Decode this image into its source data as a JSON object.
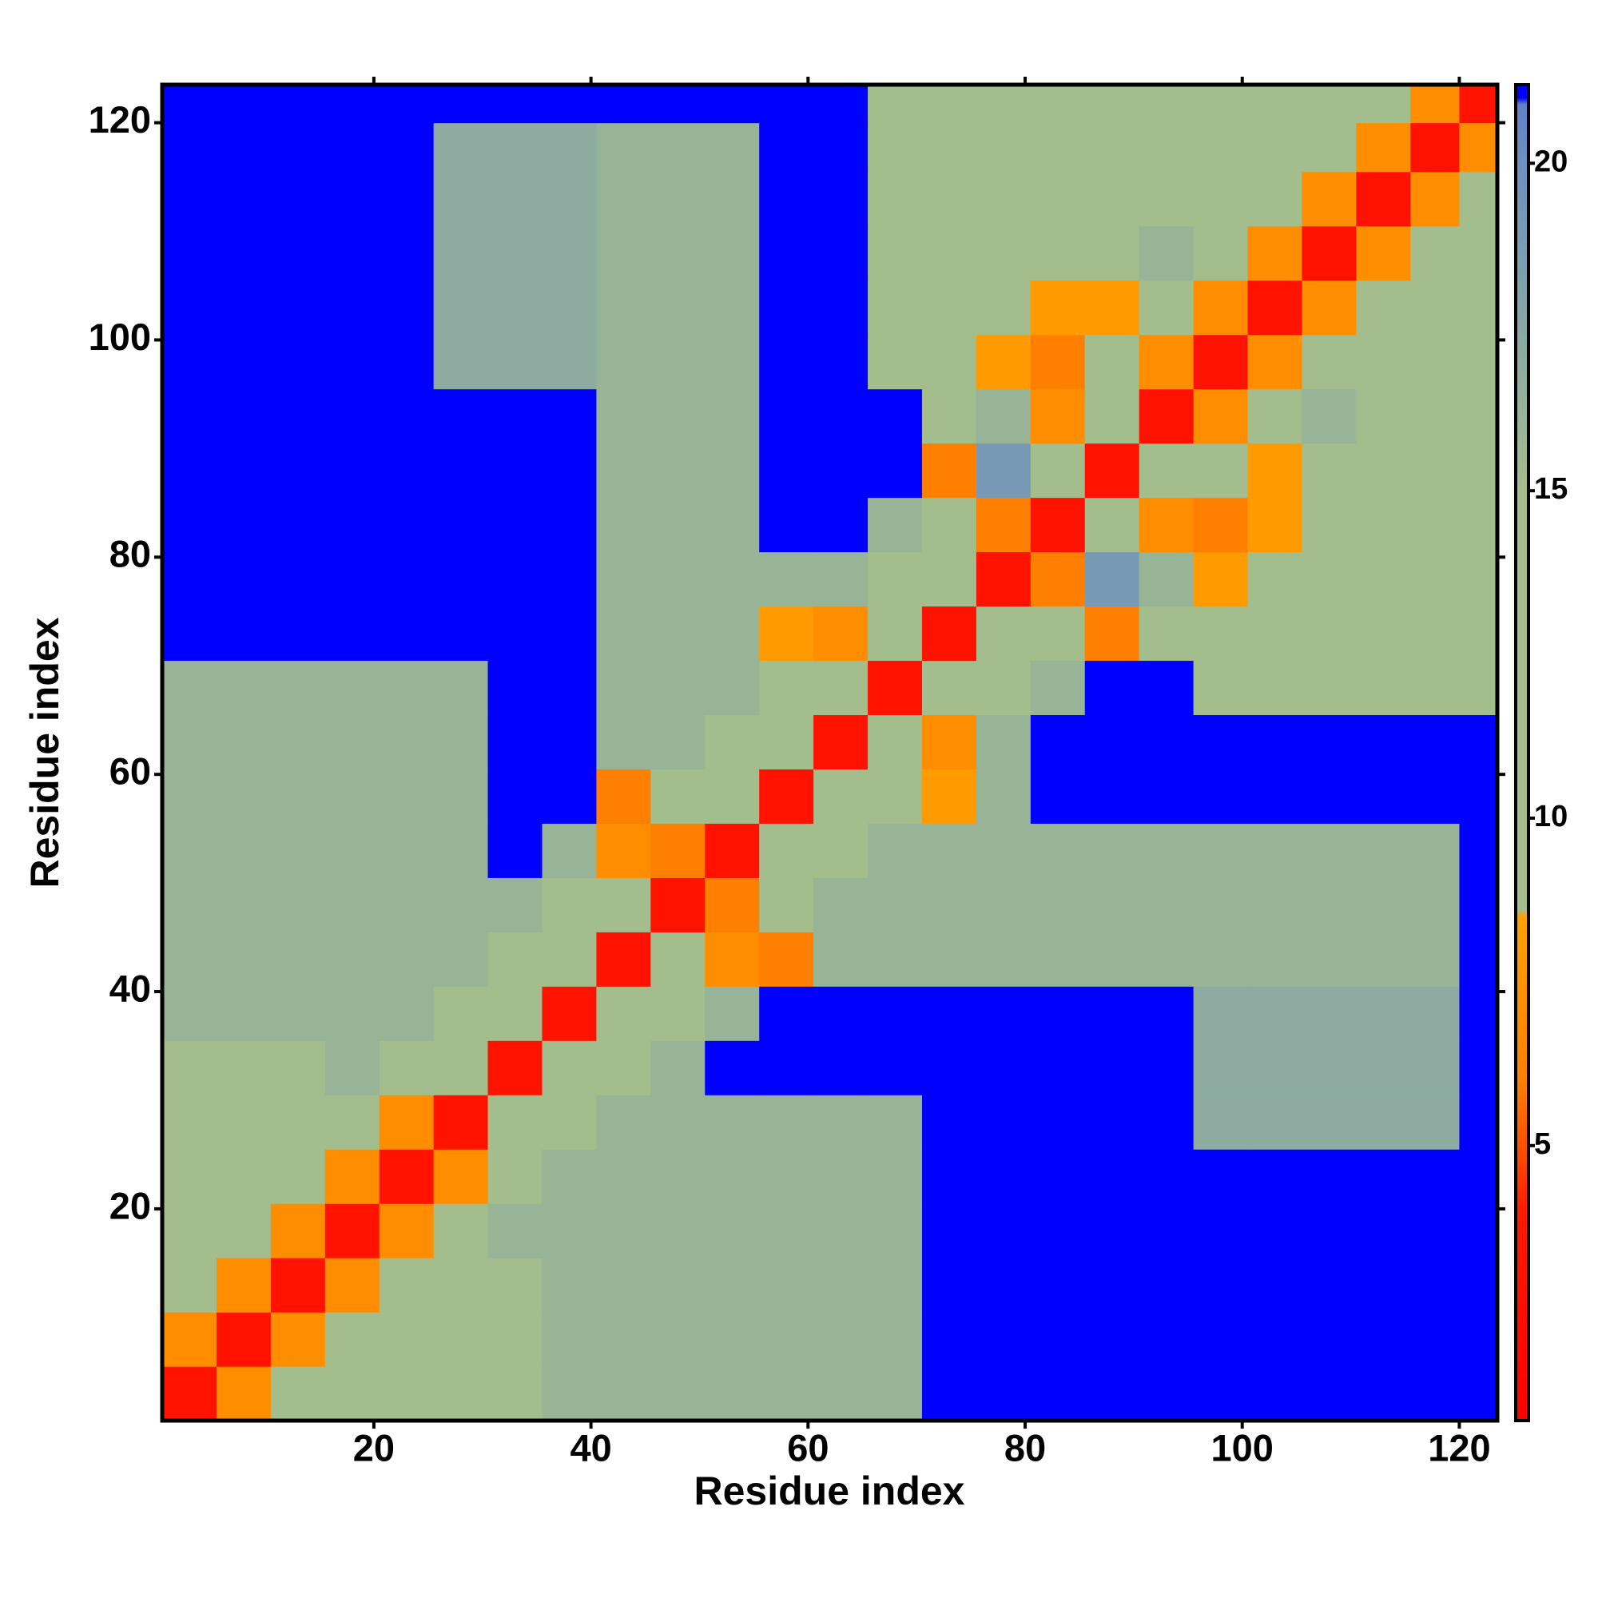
{
  "chart_data": {
    "type": "heatmap",
    "xlabel": "Residue index",
    "ylabel": "Residue index",
    "x": [
      3,
      8,
      13,
      18,
      23,
      28,
      33,
      38,
      43,
      48,
      53,
      58,
      63,
      68,
      73,
      78,
      83,
      88,
      93,
      98,
      103,
      108,
      113,
      118,
      122
    ],
    "y": [
      3,
      8,
      13,
      18,
      23,
      28,
      33,
      38,
      43,
      48,
      53,
      58,
      63,
      68,
      73,
      78,
      83,
      88,
      93,
      98,
      103,
      108,
      113,
      118,
      122
    ],
    "xlim": [
      0.5,
      123.5
    ],
    "ylim": [
      0.5,
      123.5
    ],
    "xticks": [
      20,
      40,
      60,
      80,
      100,
      120
    ],
    "yticks": [
      20,
      40,
      60,
      80,
      100,
      120
    ],
    "zlim": [
      0.8,
      21.2
    ],
    "zticks": [
      5,
      10,
      15,
      20
    ],
    "colorscale": [
      [
        0.8,
        "#ff0000"
      ],
      [
        4,
        "#ff1a00"
      ],
      [
        5,
        "#ff5000"
      ],
      [
        6,
        "#ff8000"
      ],
      [
        8.5,
        "#ffa000"
      ],
      [
        8.6,
        "#a3bd8c"
      ],
      [
        15,
        "#a3bd8c"
      ],
      [
        20,
        "#6d90c0"
      ],
      [
        20.9,
        "#5f82c8"
      ],
      [
        21,
        "#0000ff"
      ],
      [
        21.2,
        "#0000ff"
      ]
    ],
    "z": [
      [
        3,
        7,
        11,
        14,
        15,
        15,
        15,
        16,
        16,
        16,
        16,
        16,
        16,
        16,
        21,
        21,
        21,
        21,
        21,
        21,
        21,
        21,
        21,
        21,
        21
      ],
      [
        7,
        3,
        7,
        11,
        14,
        15,
        15,
        16,
        16,
        16,
        16,
        16,
        16,
        16,
        21,
        21,
        21,
        21,
        21,
        21,
        21,
        21,
        21,
        21,
        21
      ],
      [
        11,
        7,
        3,
        7,
        11,
        14,
        15,
        16,
        16,
        16,
        16,
        16,
        16,
        16,
        21,
        21,
        21,
        21,
        21,
        21,
        21,
        21,
        21,
        21,
        21
      ],
      [
        14,
        11,
        7,
        3,
        7,
        11,
        16,
        16,
        16,
        16,
        16,
        16,
        16,
        16,
        21,
        21,
        21,
        21,
        21,
        21,
        21,
        21,
        21,
        21,
        21
      ],
      [
        15,
        14,
        11,
        7,
        3,
        7,
        13,
        16,
        16,
        16,
        16,
        16,
        16,
        16,
        21,
        21,
        21,
        21,
        21,
        21,
        21,
        21,
        21,
        21,
        21
      ],
      [
        15,
        15,
        14,
        11,
        7,
        3,
        10,
        13,
        16,
        16,
        16,
        16,
        16,
        16,
        21,
        21,
        21,
        21,
        21,
        17,
        17,
        17,
        17,
        17,
        21
      ],
      [
        15,
        15,
        15,
        16,
        13,
        10,
        3,
        10,
        13,
        16,
        21,
        21,
        21,
        21,
        21,
        21,
        21,
        21,
        21,
        17,
        17,
        17,
        17,
        17,
        21
      ],
      [
        16,
        16,
        16,
        16,
        16,
        13,
        10,
        3,
        10,
        13,
        16,
        21,
        21,
        21,
        21,
        21,
        21,
        21,
        21,
        17,
        17,
        17,
        17,
        17,
        21
      ],
      [
        16,
        16,
        16,
        16,
        16,
        16,
        13,
        10,
        3,
        10,
        7,
        6,
        16,
        16,
        16,
        16,
        16,
        16,
        16,
        16,
        16,
        16,
        16,
        16,
        21
      ],
      [
        16,
        16,
        16,
        16,
        16,
        16,
        16,
        13,
        10,
        3,
        6,
        13,
        16,
        16,
        16,
        16,
        16,
        16,
        16,
        16,
        16,
        16,
        16,
        16,
        21
      ],
      [
        16,
        16,
        16,
        16,
        16,
        16,
        21,
        16,
        7,
        6,
        3,
        10,
        13,
        16,
        16,
        16,
        16,
        16,
        16,
        16,
        16,
        16,
        16,
        16,
        21
      ],
      [
        16,
        16,
        16,
        16,
        16,
        16,
        21,
        21,
        6,
        13,
        10,
        3,
        10,
        13,
        8,
        16,
        21,
        21,
        21,
        21,
        21,
        21,
        21,
        21,
        21
      ],
      [
        16,
        16,
        16,
        16,
        16,
        16,
        21,
        21,
        16,
        16,
        13,
        10,
        3,
        10,
        7,
        16,
        21,
        21,
        21,
        21,
        21,
        21,
        21,
        21,
        21
      ],
      [
        16,
        16,
        16,
        16,
        16,
        16,
        21,
        21,
        16,
        16,
        16,
        13,
        10,
        3,
        10,
        13,
        16,
        21,
        21,
        15,
        15,
        15,
        15,
        15,
        15
      ],
      [
        21,
        21,
        21,
        21,
        21,
        21,
        21,
        21,
        16,
        16,
        16,
        8,
        7,
        10,
        3,
        10,
        13,
        6,
        12,
        14,
        14,
        15,
        15,
        15,
        15
      ],
      [
        21,
        21,
        21,
        21,
        21,
        21,
        21,
        21,
        16,
        16,
        16,
        16,
        16,
        13,
        10,
        3,
        6,
        19,
        16,
        8,
        14,
        15,
        15,
        15,
        15
      ],
      [
        21,
        21,
        21,
        21,
        21,
        21,
        21,
        21,
        16,
        16,
        16,
        21,
        21,
        16,
        13,
        6,
        3,
        10,
        7,
        6,
        8,
        13,
        13,
        13,
        13
      ],
      [
        21,
        21,
        21,
        21,
        21,
        21,
        21,
        21,
        16,
        16,
        16,
        21,
        21,
        21,
        6,
        19,
        10,
        3,
        10,
        13,
        8,
        13,
        13,
        13,
        13
      ],
      [
        21,
        21,
        21,
        21,
        21,
        21,
        21,
        21,
        16,
        16,
        16,
        21,
        21,
        21,
        12,
        16,
        7,
        10,
        3,
        7,
        13,
        16,
        13,
        13,
        13
      ],
      [
        21,
        21,
        21,
        21,
        21,
        17,
        17,
        17,
        16,
        16,
        16,
        21,
        21,
        15,
        14,
        8,
        6,
        13,
        7,
        3,
        7,
        11,
        14,
        14,
        14
      ],
      [
        21,
        21,
        21,
        21,
        21,
        17,
        17,
        17,
        16,
        16,
        16,
        21,
        21,
        15,
        14,
        14,
        8,
        8,
        13,
        7,
        3,
        7,
        11,
        14,
        14
      ],
      [
        21,
        21,
        21,
        21,
        21,
        17,
        17,
        17,
        16,
        16,
        16,
        21,
        21,
        15,
        15,
        15,
        13,
        13,
        16,
        11,
        7,
        3,
        7,
        11,
        14
      ],
      [
        21,
        21,
        21,
        21,
        21,
        17,
        17,
        17,
        16,
        16,
        16,
        21,
        21,
        15,
        15,
        15,
        13,
        13,
        13,
        14,
        11,
        7,
        3,
        7,
        11
      ],
      [
        21,
        21,
        21,
        21,
        21,
        17,
        17,
        17,
        16,
        16,
        16,
        21,
        21,
        15,
        15,
        15,
        13,
        13,
        13,
        14,
        14,
        11,
        7,
        3,
        7
      ],
      [
        21,
        21,
        21,
        21,
        21,
        21,
        21,
        21,
        21,
        21,
        21,
        21,
        21,
        15,
        15,
        15,
        13,
        13,
        13,
        14,
        14,
        14,
        11,
        7,
        3
      ]
    ]
  }
}
